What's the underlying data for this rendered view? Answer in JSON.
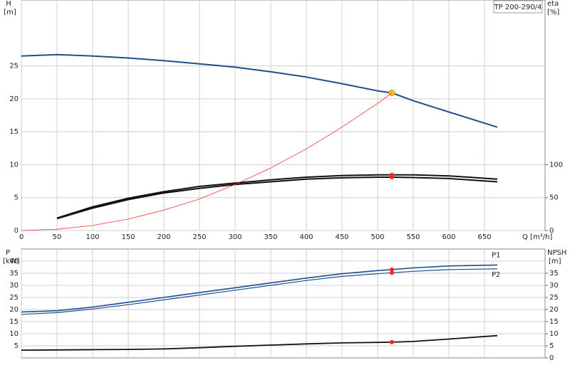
{
  "chart_data": [
    {
      "type": "line",
      "title": "TP 200-290/4",
      "ylabel": [
        "H",
        "[m]"
      ],
      "y2label": [
        "eta",
        "[%]"
      ],
      "xlabel": "Q [m³/h]",
      "xlim": [
        0,
        735
      ],
      "xticks": [
        0,
        50,
        100,
        150,
        200,
        250,
        300,
        350,
        400,
        450,
        500,
        550,
        600,
        650
      ],
      "ylim": [
        0,
        35
      ],
      "yticks": [
        0,
        5,
        10,
        15,
        20,
        25
      ],
      "y2lim": [
        0,
        350
      ],
      "y2ticks": [
        0,
        50,
        100
      ],
      "grid": true,
      "duty_q": 520,
      "series": [
        {
          "color": "#1c4f8c",
          "width": 2,
          "axis": "y",
          "marker_color": "#ffc61a",
          "x": [
            0,
            50,
            100,
            150,
            200,
            250,
            300,
            350,
            400,
            450,
            500,
            520,
            550,
            600,
            668
          ],
          "values": [
            26.5,
            26.7,
            26.5,
            26.2,
            25.8,
            25.3,
            24.8,
            24.1,
            23.3,
            22.3,
            21.2,
            20.9,
            19.7,
            18.0,
            15.7
          ]
        },
        {
          "color": "#111111",
          "width": 2,
          "axis": "y2",
          "marker_color": "#ff2020",
          "x": [
            50,
            100,
            150,
            200,
            250,
            300,
            350,
            400,
            450,
            500,
            520,
            550,
            600,
            668
          ],
          "values": [
            19,
            36,
            49,
            59,
            67,
            72,
            77,
            81,
            83.5,
            84.5,
            84.5,
            84.5,
            83,
            78
          ]
        },
        {
          "color": "#111111",
          "width": 2,
          "axis": "y2",
          "marker_color": "#ff2020",
          "x": [
            50,
            100,
            150,
            200,
            250,
            300,
            350,
            400,
            450,
            500,
            520,
            550,
            600,
            668
          ],
          "values": [
            18,
            34,
            47,
            57,
            64,
            70,
            74,
            78,
            80,
            81,
            81,
            80.5,
            79,
            74
          ]
        },
        {
          "color": "#ff3030",
          "width": 0.8,
          "axis": "y",
          "x": [
            0,
            50,
            100,
            150,
            200,
            250,
            300,
            350,
            400,
            450,
            500,
            520
          ],
          "values": [
            0,
            0.19,
            0.77,
            1.74,
            3.1,
            4.8,
            7.0,
            9.5,
            12.4,
            15.7,
            19.3,
            20.9
          ]
        }
      ]
    },
    {
      "type": "line",
      "ylabel": [
        "P",
        "[kW]"
      ],
      "y2label": [
        "NPSH",
        "[m]"
      ],
      "xlim": [
        0,
        735
      ],
      "ylim": [
        0,
        45
      ],
      "yticks": [
        5,
        10,
        15,
        20,
        25,
        30,
        35,
        40
      ],
      "y2lim": [
        0,
        45
      ],
      "y2ticks": [
        0,
        5,
        10,
        15,
        20,
        25,
        30,
        35
      ],
      "grid": true,
      "duty_q": 520,
      "series": [
        {
          "name": "P1",
          "color": "#1c4f8c",
          "width": 1.6,
          "axis": "y",
          "marker_color": "#ff2020",
          "x": [
            0,
            50,
            100,
            150,
            200,
            250,
            300,
            350,
            400,
            450,
            500,
            520,
            550,
            600,
            668
          ],
          "values": [
            19,
            19.5,
            21,
            23,
            25,
            27,
            29,
            31,
            33,
            34.8,
            36.1,
            36.5,
            37.2,
            38,
            38.4
          ]
        },
        {
          "name": "P2",
          "color": "#1c4f8c",
          "width": 1.2,
          "axis": "y",
          "marker_color": "#ff2020",
          "x": [
            0,
            50,
            100,
            150,
            200,
            250,
            300,
            350,
            400,
            450,
            500,
            520,
            550,
            600,
            668
          ],
          "values": [
            18,
            18.7,
            20.2,
            22,
            24,
            26,
            28,
            30,
            32,
            33.7,
            34.8,
            35.2,
            35.8,
            36.5,
            36.8
          ]
        },
        {
          "color": "#111111",
          "width": 1.8,
          "axis": "y2",
          "marker_color": "#ff2020",
          "x": [
            0,
            50,
            100,
            150,
            200,
            250,
            300,
            350,
            400,
            450,
            500,
            520,
            550,
            600,
            668
          ],
          "values": [
            3.2,
            3.3,
            3.4,
            3.5,
            3.7,
            4.2,
            4.8,
            5.3,
            5.8,
            6.2,
            6.4,
            6.5,
            6.8,
            7.8,
            9.2
          ]
        }
      ]
    }
  ]
}
